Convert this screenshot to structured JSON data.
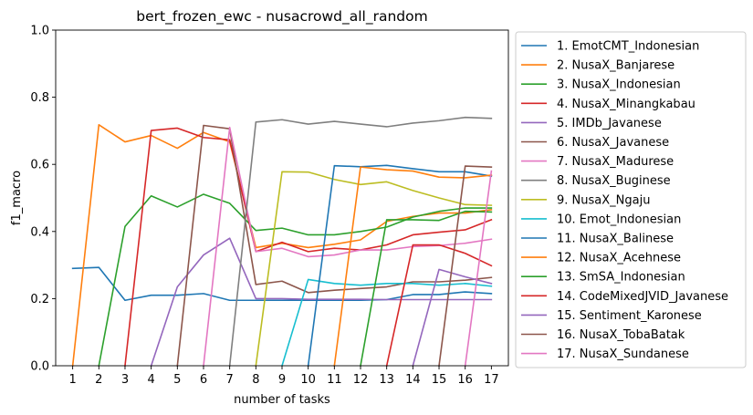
{
  "chart_data": {
    "type": "line",
    "title": "bert_frozen_ewc - nusacrowd_all_random",
    "xlabel": "number of tasks",
    "ylabel": "f1_macro",
    "x": [
      1,
      2,
      3,
      4,
      5,
      6,
      7,
      8,
      9,
      10,
      11,
      12,
      13,
      14,
      15,
      16,
      17
    ],
    "xlim": [
      0.35,
      17.65
    ],
    "ylim": [
      0,
      1
    ],
    "yticks": [
      "0.0",
      "0.2",
      "0.4",
      "0.6",
      "0.8",
      "1.0"
    ],
    "legend_position": "outside-right",
    "series": [
      {
        "name": "1. EmotCMT_Indonesian",
        "color": "#1f77b4",
        "values": [
          0.29,
          0.293,
          0.195,
          0.21,
          0.21,
          0.215,
          0.195,
          0.195,
          0.195,
          0.195,
          0.195,
          0.195,
          0.197,
          0.212,
          0.212,
          0.22,
          0.215
        ]
      },
      {
        "name": "2. NusaX_Banjarese",
        "color": "#ff7f0e",
        "values": [
          0.0,
          0.718,
          0.667,
          0.686,
          0.648,
          0.695,
          0.667,
          0.352,
          0.365,
          0.352,
          0.362,
          0.375,
          0.43,
          0.445,
          0.455,
          0.455,
          0.465
        ]
      },
      {
        "name": "3. NusaX_Indonesian",
        "color": "#2ca02c",
        "values": [
          null,
          0.0,
          0.415,
          0.506,
          0.473,
          0.511,
          0.484,
          0.403,
          0.41,
          0.39,
          0.39,
          0.4,
          0.413,
          0.443,
          0.46,
          0.47,
          0.47
        ]
      },
      {
        "name": "4. NusaX_Minangkabau",
        "color": "#d62728",
        "values": [
          null,
          null,
          0.0,
          0.701,
          0.708,
          0.68,
          0.673,
          0.34,
          0.368,
          0.34,
          0.35,
          0.345,
          0.36,
          0.39,
          0.398,
          0.405,
          0.435
        ]
      },
      {
        "name": "5. IMDb_Javanese",
        "color": "#9467bd",
        "values": [
          null,
          null,
          null,
          0.0,
          0.235,
          0.33,
          0.38,
          0.2,
          0.2,
          0.198,
          0.198,
          0.198,
          0.197,
          0.197,
          0.197,
          0.197,
          0.197
        ]
      },
      {
        "name": "6. NusaX_Javanese",
        "color": "#8c564b",
        "values": [
          null,
          null,
          null,
          null,
          0.0,
          0.716,
          0.706,
          0.242,
          0.252,
          0.218,
          0.225,
          0.23,
          0.235,
          0.25,
          0.25,
          0.255,
          0.263
        ]
      },
      {
        "name": "7. NusaX_Madurese",
        "color": "#e377c2",
        "values": [
          null,
          null,
          null,
          null,
          null,
          0.0,
          0.71,
          0.34,
          0.35,
          0.325,
          0.33,
          0.345,
          0.345,
          0.355,
          0.358,
          0.365,
          0.377
        ]
      },
      {
        "name": "8. NusaX_Buginese",
        "color": "#7f7f7f",
        "values": [
          null,
          null,
          null,
          null,
          null,
          null,
          0.0,
          0.726,
          0.733,
          0.72,
          0.728,
          0.72,
          0.712,
          0.723,
          0.73,
          0.74,
          0.737
        ]
      },
      {
        "name": "9. NusaX_Ngaju",
        "color": "#bcbd22",
        "values": [
          null,
          null,
          null,
          null,
          null,
          null,
          null,
          0.0,
          0.578,
          0.577,
          0.555,
          0.54,
          0.548,
          0.522,
          0.5,
          0.48,
          0.478
        ]
      },
      {
        "name": "10. Emot_Indonesian",
        "color": "#17becf",
        "values": [
          null,
          null,
          null,
          null,
          null,
          null,
          null,
          null,
          0.0,
          0.257,
          0.245,
          0.24,
          0.245,
          0.245,
          0.24,
          0.245,
          0.237
        ]
      },
      {
        "name": "11. NusaX_Balinese",
        "color": "#1f77b4",
        "values": [
          null,
          null,
          null,
          null,
          null,
          null,
          null,
          null,
          null,
          0.0,
          0.596,
          0.593,
          0.597,
          0.587,
          0.578,
          0.578,
          0.565
        ]
      },
      {
        "name": "12. NusaX_Acehnese",
        "color": "#ff7f0e",
        "values": [
          null,
          null,
          null,
          null,
          null,
          null,
          null,
          null,
          null,
          null,
          0.0,
          0.592,
          0.584,
          0.58,
          0.562,
          0.56,
          0.568
        ]
      },
      {
        "name": "13. SmSA_Indonesian",
        "color": "#2ca02c",
        "values": [
          null,
          null,
          null,
          null,
          null,
          null,
          null,
          null,
          null,
          null,
          null,
          0.0,
          0.435,
          0.435,
          0.433,
          0.46,
          0.458
        ]
      },
      {
        "name": "14. CodeMixedJVID_Javanese",
        "color": "#d62728",
        "values": [
          null,
          null,
          null,
          null,
          null,
          null,
          null,
          null,
          null,
          null,
          null,
          null,
          0.0,
          0.36,
          0.36,
          0.335,
          0.298
        ]
      },
      {
        "name": "15. Sentiment_Karonese",
        "color": "#9467bd",
        "values": [
          null,
          null,
          null,
          null,
          null,
          null,
          null,
          null,
          null,
          null,
          null,
          null,
          null,
          0.0,
          0.287,
          0.265,
          0.245
        ]
      },
      {
        "name": "16. NusaX_TobaBatak",
        "color": "#8c564b",
        "values": [
          null,
          null,
          null,
          null,
          null,
          null,
          null,
          null,
          null,
          null,
          null,
          null,
          null,
          null,
          0.0,
          0.595,
          0.592
        ]
      },
      {
        "name": "17. NusaX_Sundanese",
        "color": "#e377c2",
        "values": [
          null,
          null,
          null,
          null,
          null,
          null,
          null,
          null,
          null,
          null,
          null,
          null,
          null,
          null,
          null,
          0.0,
          0.58
        ]
      }
    ]
  }
}
